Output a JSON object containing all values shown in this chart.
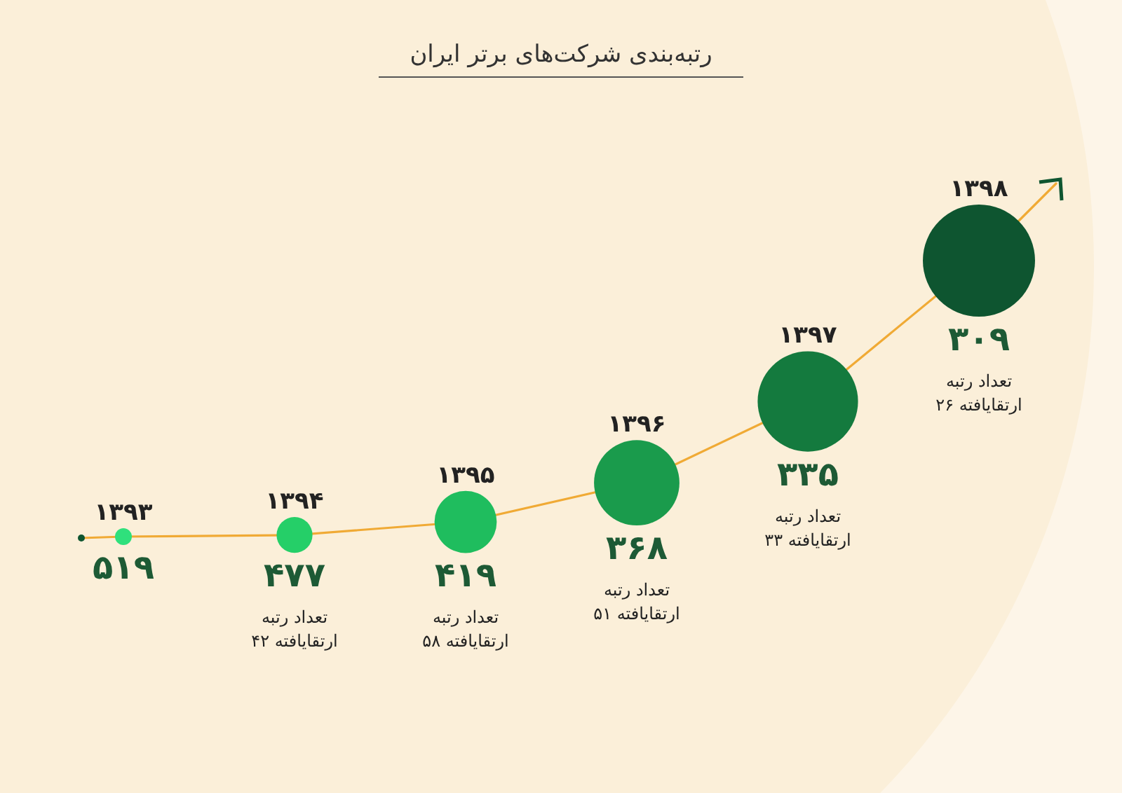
{
  "chart_data": {
    "type": "other",
    "title": "رتبه‌بندی شرکت‌های برتر ایران",
    "categories": [
      "۱۳۹۳",
      "۱۳۹۴",
      "۱۳۹۵",
      "۱۳۹۶",
      "۱۳۹۷",
      "۱۳۹۸"
    ],
    "values": [
      519,
      477,
      419,
      368,
      335,
      309
    ],
    "value_labels": [
      "۵۱۹",
      "۴۷۷",
      "۴۱۹",
      "۳۶۸",
      "۳۳۵",
      "۳۰۹"
    ],
    "colors": [
      "#2fe07c",
      "#25cf68",
      "#1fbd5e",
      "#1a9b4c",
      "#147a3e",
      "#0e5530"
    ],
    "annotations": [
      "تعداد رتبه\nارتقایافته ۴۲",
      "تعداد رتبه\nارتقایافته ۵۸",
      "تعداد رتبه\nارتقایافته ۵۱",
      "تعداد رتبه\nارتقایافته ۳۳",
      "تعداد رتبه\nارتقایافته ۲۶"
    ]
  }
}
